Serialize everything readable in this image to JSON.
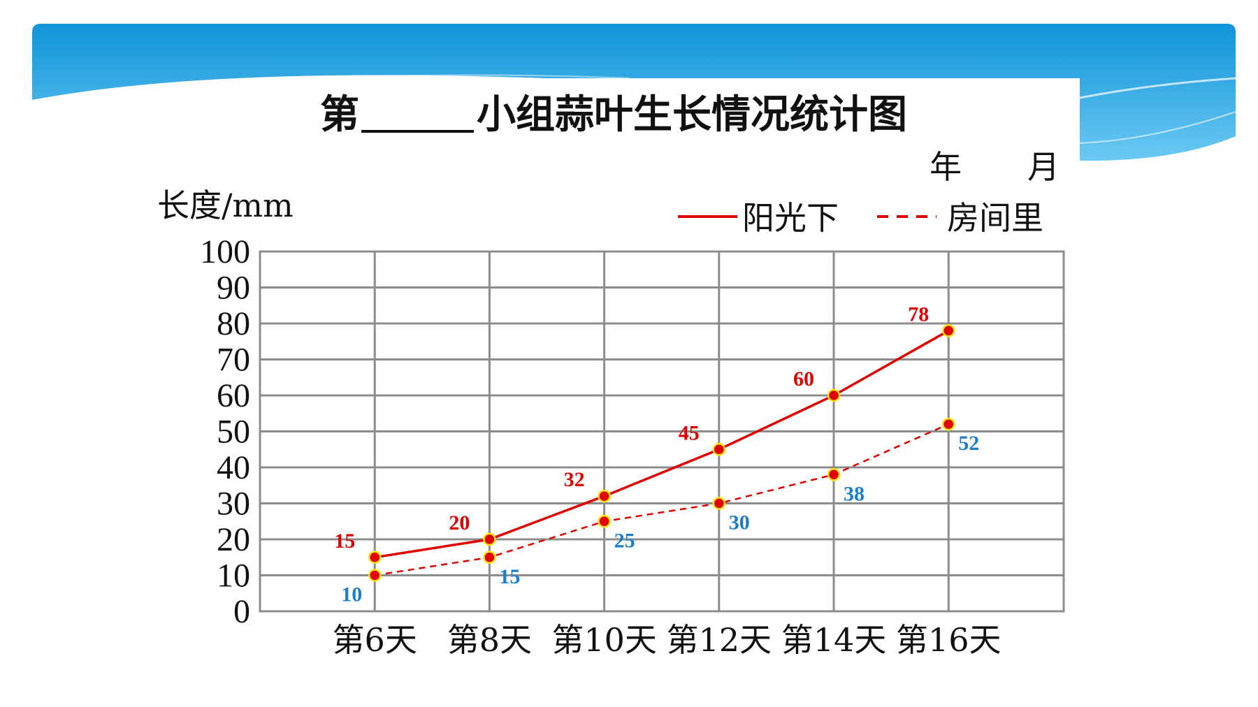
{
  "slide": {
    "title_prefix": "第",
    "title_suffix": "小组蒜叶生长情况统计图",
    "date_year": "年",
    "date_month": "月"
  },
  "colors": {
    "banner_top": "#0f93d8",
    "banner_bottom": "#7fd0f5",
    "sun": "#e00000",
    "room": "#e00000",
    "room_label": "#1a7fc8",
    "marker_fill": "#e00000",
    "marker_stroke": "#ffe400",
    "grid": "#8c8c8c"
  },
  "chart_data": {
    "type": "line",
    "ylabel": "长度/mm",
    "ylim": [
      0,
      100
    ],
    "ytick_step": 10,
    "categories": [
      "第6天",
      "第8天",
      "第10天",
      "第12天",
      "第14天",
      "第16天"
    ],
    "legend_position": "top-right",
    "grid": true,
    "series": [
      {
        "name": "阳光下",
        "style": "solid",
        "values": [
          15,
          20,
          32,
          45,
          60,
          78
        ],
        "labels": [
          "15",
          "20",
          "32",
          "45",
          "60",
          "78"
        ]
      },
      {
        "name": "房间里",
        "style": "dashed",
        "values": [
          10,
          15,
          25,
          30,
          38,
          52
        ],
        "labels": [
          "10",
          "15",
          "25",
          "30",
          "38",
          "52"
        ]
      }
    ]
  }
}
